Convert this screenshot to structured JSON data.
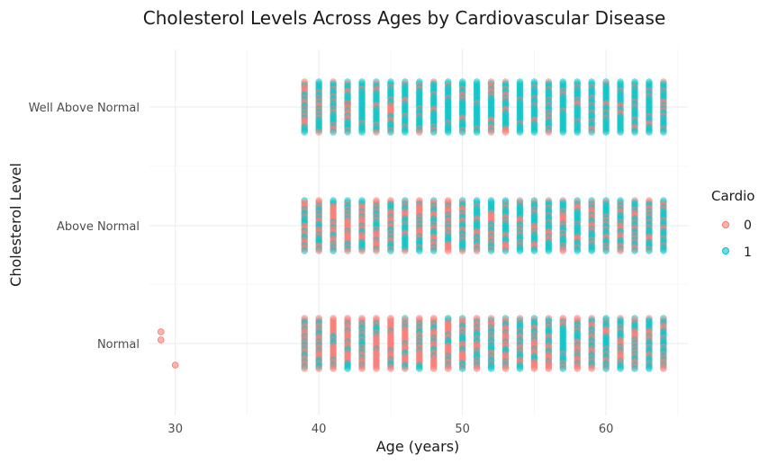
{
  "chart_data": {
    "type": "scatter",
    "title": "Cholesterol Levels Across Ages by Cardiovascular Disease",
    "xlabel": "Age (years)",
    "ylabel": "Cholesterol Level",
    "xlim": [
      28.2,
      65.7
    ],
    "x_ticks": [
      30,
      40,
      50,
      60
    ],
    "categories": [
      "Normal",
      "Above Normal",
      "Well Above Normal"
    ],
    "grid": true,
    "legend_position": "right",
    "legend": {
      "title": "Cardio",
      "entries": [
        {
          "label": "0",
          "color": "#F8766D"
        },
        {
          "label": "1",
          "color": "#00BFC4"
        }
      ]
    },
    "series": [
      {
        "name": "0",
        "color": "#F8766D",
        "points": [
          {
            "x": 29,
            "y": "Normal"
          },
          {
            "x": 29,
            "y": "Normal"
          },
          {
            "x": 30,
            "y": "Normal"
          },
          {
            "x": 42,
            "y": "Well Above Normal"
          }
        ]
      }
    ],
    "age_range": [
      39,
      64
    ],
    "age_mix": {
      "x": [
        39,
        40,
        41,
        42,
        43,
        44,
        45,
        46,
        47,
        48,
        49,
        50,
        51,
        52,
        53,
        54,
        55,
        56,
        57,
        58,
        59,
        60,
        61,
        62,
        63,
        64
      ],
      "Normal_share_cardio1": [
        0.3,
        0.35,
        0.3,
        0.2,
        0.35,
        0.25,
        0.3,
        0.2,
        0.3,
        0.35,
        0.3,
        0.45,
        0.3,
        0.5,
        0.4,
        0.5,
        0.45,
        0.55,
        0.5,
        0.6,
        0.55,
        0.5,
        0.6,
        0.55,
        0.6,
        0.5
      ],
      "AboveNormal_share_cardio1": [
        0.4,
        0.5,
        0.45,
        0.35,
        0.5,
        0.4,
        0.55,
        0.45,
        0.5,
        0.5,
        0.45,
        0.6,
        0.45,
        0.55,
        0.5,
        0.55,
        0.5,
        0.6,
        0.5,
        0.6,
        0.55,
        0.55,
        0.6,
        0.55,
        0.6,
        0.6
      ],
      "WellAboveNormal_share_cardio1": [
        0.6,
        0.75,
        0.7,
        0.7,
        0.75,
        0.7,
        0.75,
        0.75,
        0.8,
        0.75,
        0.8,
        0.8,
        0.85,
        0.75,
        0.8,
        0.85,
        0.8,
        0.8,
        0.85,
        0.8,
        0.85,
        0.8,
        0.85,
        0.8,
        0.85,
        0.8
      ]
    }
  }
}
